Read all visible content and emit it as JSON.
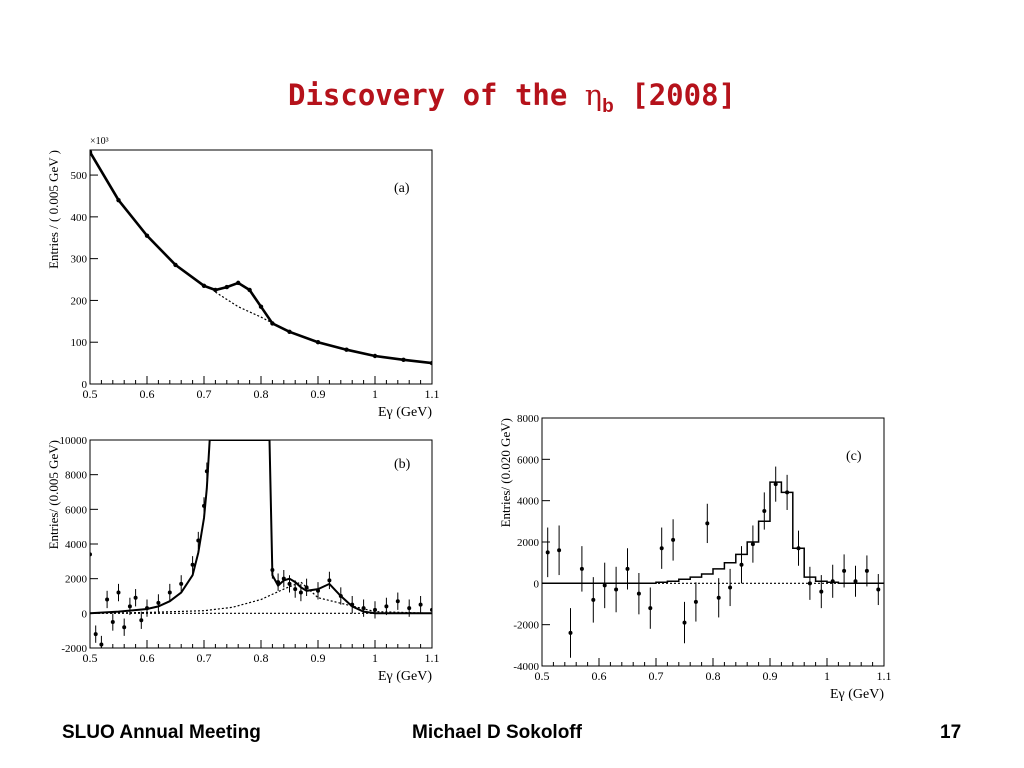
{
  "slide": {
    "title_prefix": "Discovery of the ",
    "title_greek": "η",
    "title_sub": "b",
    "title_suffix": " [2008]",
    "title_color": "#b5121b"
  },
  "footer": {
    "left": "SLUO Annual Meeting",
    "center": "Michael D Sokoloff",
    "page_number": "17"
  },
  "chart_data": [
    {
      "panel_label": "(a)",
      "type": "line",
      "xlabel": "Eγ (GeV)",
      "ylabel": "Entries / ( 0.005 GeV )",
      "multiplier": "×10³",
      "xlim": [
        0.5,
        1.1
      ],
      "ylim": [
        0,
        560
      ],
      "xticks": [
        0.5,
        0.6,
        0.7,
        0.8,
        0.9,
        1,
        1.1
      ],
      "yticks": [
        0,
        100,
        200,
        300,
        400,
        500
      ],
      "series": [
        {
          "style": "data-points",
          "x": [
            0.5,
            0.55,
            0.6,
            0.65,
            0.7,
            0.72,
            0.74,
            0.76,
            0.78,
            0.8,
            0.82,
            0.85,
            0.9,
            0.95,
            1.0,
            1.05,
            1.1
          ],
          "values": [
            555,
            440,
            355,
            285,
            235,
            225,
            232,
            242,
            225,
            185,
            145,
            125,
            100,
            82,
            67,
            58,
            50
          ]
        },
        {
          "style": "dotted-background",
          "x": [
            0.72,
            0.76,
            0.8,
            0.85
          ],
          "values": [
            220,
            185,
            160,
            125
          ]
        }
      ]
    },
    {
      "panel_label": "(b)",
      "type": "line",
      "xlabel": "Eγ (GeV)",
      "ylabel": "Entries/ (0.005 GeV)",
      "xlim": [
        0.5,
        1.1
      ],
      "ylim": [
        -2000,
        10000
      ],
      "xticks": [
        0.5,
        0.6,
        0.7,
        0.8,
        0.9,
        1,
        1.1
      ],
      "yticks": [
        -2000,
        0,
        2000,
        4000,
        6000,
        8000,
        10000
      ],
      "series": [
        {
          "style": "data-points",
          "x": [
            0.5,
            0.51,
            0.52,
            0.53,
            0.54,
            0.55,
            0.56,
            0.57,
            0.58,
            0.59,
            0.6,
            0.62,
            0.64,
            0.66,
            0.68,
            0.69,
            0.7,
            0.705,
            0.82,
            0.83,
            0.84,
            0.85,
            0.86,
            0.87,
            0.88,
            0.9,
            0.92,
            0.94,
            0.96,
            0.98,
            1.0,
            1.02,
            1.04,
            1.06,
            1.08,
            1.1
          ],
          "values": [
            3400,
            -1200,
            -1800,
            800,
            -500,
            1200,
            -800,
            400,
            900,
            -400,
            300,
            600,
            1200,
            1700,
            2800,
            4200,
            6200,
            8200,
            2500,
            1800,
            2000,
            1700,
            1400,
            1200,
            1500,
            1300,
            1900,
            1000,
            500,
            300,
            200,
            400,
            700,
            300,
            500,
            200
          ]
        },
        {
          "style": "fit-line",
          "x": [
            0.5,
            0.55,
            0.6,
            0.62,
            0.64,
            0.66,
            0.68,
            0.69,
            0.7,
            0.705,
            0.71,
            0.815,
            0.82,
            0.83,
            0.84,
            0.85,
            0.86,
            0.87,
            0.88,
            0.9,
            0.92,
            0.94,
            0.96,
            0.98,
            1.0,
            1.1
          ],
          "values": [
            0,
            100,
            250,
            400,
            700,
            1200,
            2200,
            3500,
            5500,
            7200,
            10000,
            10000,
            2200,
            1600,
            1900,
            2000,
            1800,
            1500,
            1300,
            1400,
            1700,
            1000,
            400,
            100,
            0,
            0
          ]
        },
        {
          "style": "dotted-component",
          "x": [
            0.5,
            0.6,
            0.7,
            0.75,
            0.8,
            0.84,
            0.87,
            0.9,
            1.0,
            1.1
          ],
          "values": [
            0,
            50,
            150,
            350,
            800,
            1400,
            1800,
            900,
            100,
            0
          ]
        }
      ]
    },
    {
      "panel_label": "(c)",
      "type": "scatter",
      "xlabel": "Eγ (GeV)",
      "ylabel": "Entries/ (0.020 GeV)",
      "xlim": [
        0.5,
        1.1
      ],
      "ylim": [
        -4000,
        8000
      ],
      "xticks": [
        0.5,
        0.6,
        0.7,
        0.8,
        0.9,
        1,
        1.1
      ],
      "yticks": [
        -4000,
        -2000,
        0,
        2000,
        4000,
        6000,
        8000
      ],
      "series": [
        {
          "style": "data-points",
          "x": [
            0.51,
            0.53,
            0.55,
            0.57,
            0.59,
            0.61,
            0.63,
            0.65,
            0.67,
            0.69,
            0.71,
            0.73,
            0.75,
            0.77,
            0.79,
            0.81,
            0.83,
            0.85,
            0.87,
            0.89,
            0.91,
            0.93,
            0.95,
            0.97,
            0.99,
            1.01,
            1.03,
            1.05,
            1.07,
            1.09
          ],
          "values": [
            1500,
            1600,
            -2400,
            700,
            -800,
            -100,
            -300,
            700,
            -500,
            -1200,
            1700,
            2100,
            -1900,
            -900,
            2900,
            -700,
            -200,
            900,
            1900,
            3500,
            4800,
            4400,
            1700,
            0,
            -400,
            100,
            600,
            100,
            600,
            -300
          ],
          "errors": [
            1200,
            1200,
            1200,
            1100,
            1100,
            1100,
            1100,
            1000,
            1000,
            1000,
            1000,
            1000,
            1000,
            950,
            950,
            950,
            900,
            900,
            900,
            900,
            850,
            850,
            850,
            800,
            800,
            800,
            800,
            750,
            750,
            750
          ]
        },
        {
          "style": "fit-histogram",
          "x": [
            0.5,
            0.52,
            0.54,
            0.56,
            0.58,
            0.6,
            0.62,
            0.64,
            0.66,
            0.68,
            0.7,
            0.72,
            0.74,
            0.76,
            0.78,
            0.8,
            0.82,
            0.84,
            0.86,
            0.88,
            0.9,
            0.92,
            0.94,
            0.96,
            0.98,
            1.0,
            1.02,
            1.04,
            1.06,
            1.08
          ],
          "values": [
            0,
            0,
            0,
            0,
            0,
            0,
            0,
            0,
            0,
            0,
            50,
            100,
            200,
            300,
            450,
            700,
            1000,
            1400,
            2000,
            3000,
            4900,
            4400,
            1700,
            300,
            100,
            50,
            0,
            0,
            0,
            0
          ]
        }
      ]
    }
  ]
}
